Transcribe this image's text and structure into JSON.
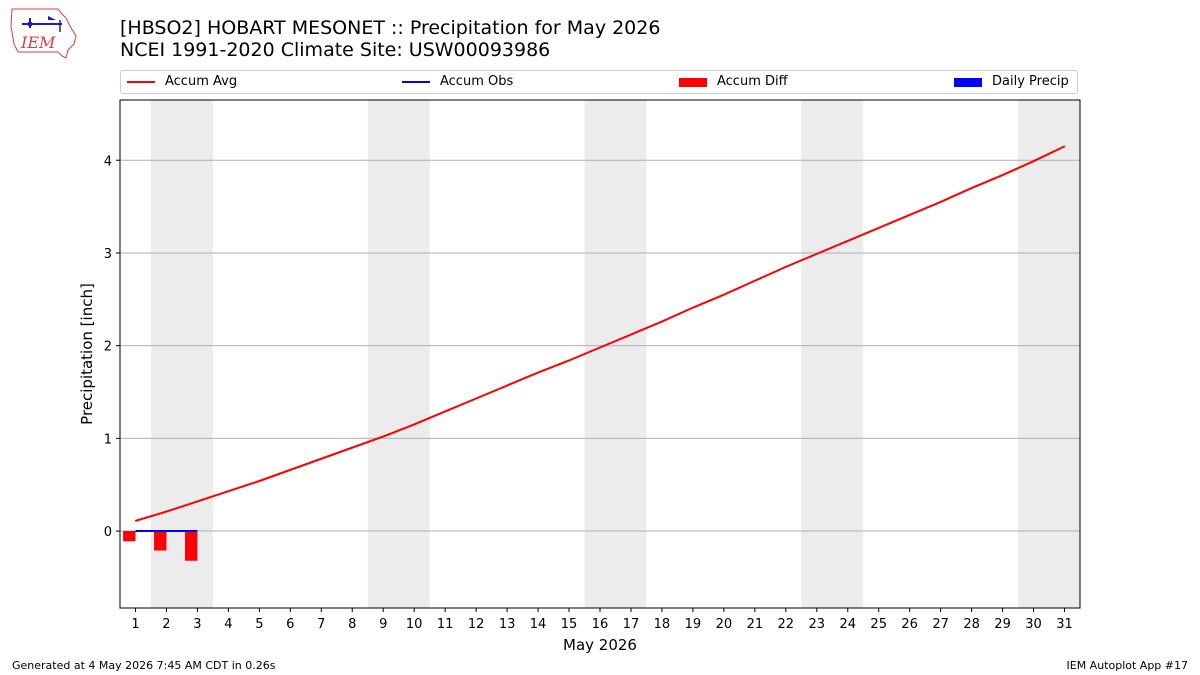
{
  "logo": {
    "text": "IEM"
  },
  "header": {
    "title_line1": "[HBSO2] HOBART MESONET :: Precipitation for May 2026",
    "title_line2": "NCEI 1991-2020 Climate Site: USW00093986"
  },
  "legend": [
    {
      "label": "Accum Avg",
      "kind": "line",
      "color": "#ff0000"
    },
    {
      "label": "Accum Obs",
      "kind": "line",
      "color": "#0000ff"
    },
    {
      "label": "Accum Diff",
      "kind": "box",
      "color": "#ff0000"
    },
    {
      "label": "Daily Precip",
      "kind": "box",
      "color": "#0000ff"
    }
  ],
  "footer": {
    "left": "Generated at 4 May 2026 7:45 AM CDT in 0.26s",
    "right": "IEM Autoplot App #17"
  },
  "chart_data": {
    "type": "line",
    "xlabel": "May 2026",
    "ylabel": "Precipitation [inch]",
    "x": [
      1,
      2,
      3,
      4,
      5,
      6,
      7,
      8,
      9,
      10,
      11,
      12,
      13,
      14,
      15,
      16,
      17,
      18,
      19,
      20,
      21,
      22,
      23,
      24,
      25,
      26,
      27,
      28,
      29,
      30,
      31
    ],
    "xlim": [
      0.5,
      31.5
    ],
    "ylim": [
      -0.83,
      4.65
    ],
    "yticks": [
      0,
      1,
      2,
      3,
      4
    ],
    "grid": "horizontal",
    "weekend_shading": [
      [
        1.5,
        3.5
      ],
      [
        8.5,
        10.5
      ],
      [
        15.5,
        17.5
      ],
      [
        22.5,
        24.5
      ],
      [
        29.5,
        31.5
      ]
    ],
    "colors": {
      "avg": "#ff0000",
      "obs": "#0000ff",
      "diff": "#ff0000",
      "daily": "#0000ff",
      "shade": "#ececec",
      "grid": "#b0b0b0"
    },
    "series": [
      {
        "name": "Accum Avg",
        "type": "line",
        "x": [
          1,
          2,
          3,
          4,
          5,
          6,
          7,
          8,
          9,
          10,
          11,
          12,
          13,
          14,
          15,
          16,
          17,
          18,
          19,
          20,
          21,
          22,
          23,
          24,
          25,
          26,
          27,
          28,
          29,
          30,
          31
        ],
        "values": [
          0.11,
          0.21,
          0.32,
          0.43,
          0.54,
          0.66,
          0.78,
          0.9,
          1.02,
          1.15,
          1.29,
          1.43,
          1.57,
          1.71,
          1.84,
          1.98,
          2.12,
          2.26,
          2.41,
          2.55,
          2.7,
          2.85,
          2.99,
          3.13,
          3.27,
          3.41,
          3.55,
          3.7,
          3.84,
          3.99,
          4.15
        ]
      },
      {
        "name": "Accum Obs",
        "type": "line",
        "x": [
          1,
          2,
          3
        ],
        "values": [
          0.0,
          0.0,
          0.0
        ]
      },
      {
        "name": "Accum Diff",
        "type": "bar",
        "x": [
          1,
          2,
          3
        ],
        "values": [
          -0.11,
          -0.21,
          -0.32
        ]
      },
      {
        "name": "Daily Precip",
        "type": "bar",
        "x": [
          1,
          2,
          3
        ],
        "values": [
          0.0,
          0.0,
          0.0
        ]
      }
    ]
  }
}
